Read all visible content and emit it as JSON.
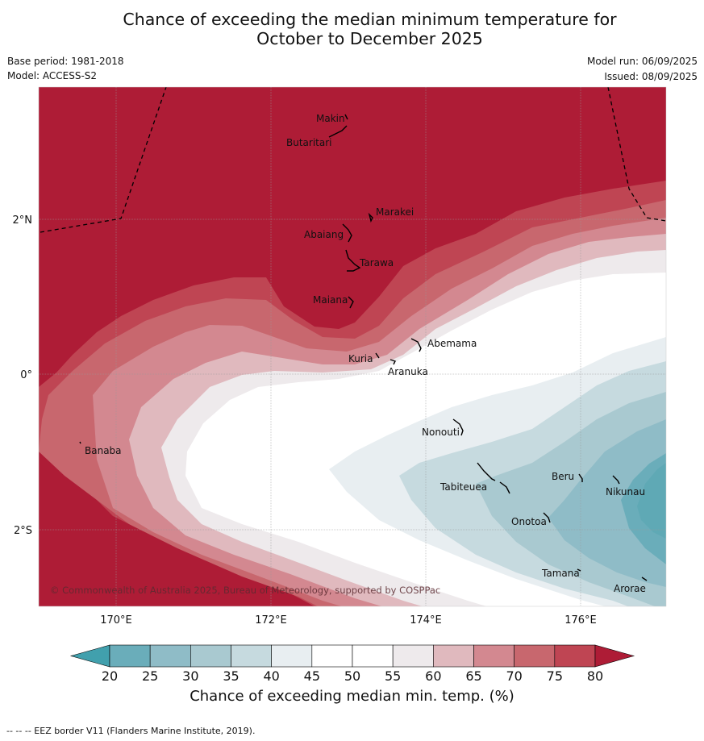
{
  "header": {
    "title_line1": "Chance of exceeding the median minimum temperature for",
    "title_line2": "October to December 2025",
    "base_period": "Base period: 1981-2018",
    "model": "Model: ACCESS-S2",
    "model_run": "Model run: 06/09/2025",
    "issued": "Issued: 08/09/2025"
  },
  "map": {
    "copyright": "© Commonwealth of Australia 2025, Bureau of Meteorology, supported by COSPPac",
    "lon_ticks": [
      "170°E",
      "172°E",
      "174°E",
      "176°E"
    ],
    "lat_ticks": [
      "2°N",
      "0°",
      "2°S"
    ],
    "islands": [
      {
        "name": "Makin"
      },
      {
        "name": "Butaritari"
      },
      {
        "name": "Marakei"
      },
      {
        "name": "Abaiang"
      },
      {
        "name": "Tarawa"
      },
      {
        "name": "Maiana"
      },
      {
        "name": "Abemama"
      },
      {
        "name": "Kuria"
      },
      {
        "name": "Aranuka"
      },
      {
        "name": "Banaba"
      },
      {
        "name": "Nonouti"
      },
      {
        "name": "Beru"
      },
      {
        "name": "Nikunau"
      },
      {
        "name": "Tabiteuea"
      },
      {
        "name": "Onotoa"
      },
      {
        "name": "Tamana"
      },
      {
        "name": "Arorae"
      }
    ]
  },
  "colorbar": {
    "ticks": [
      "20",
      "25",
      "30",
      "35",
      "40",
      "45",
      "50",
      "55",
      "60",
      "65",
      "70",
      "75",
      "80"
    ],
    "colors": [
      "#41a0ad",
      "#6aadba",
      "#8fbcc7",
      "#a9c9d0",
      "#c6dadf",
      "#e8eef1",
      "#ffffff",
      "#ffffff",
      "#eeeaec",
      "#e0b9be",
      "#d38890",
      "#c8676e",
      "#bf4553",
      "#ae1c36"
    ],
    "label": "Chance of exceeding median min. temp. (%)"
  },
  "footer": "--  --  -- EEZ border V11 (Flanders Marine Institute, 2019)."
}
